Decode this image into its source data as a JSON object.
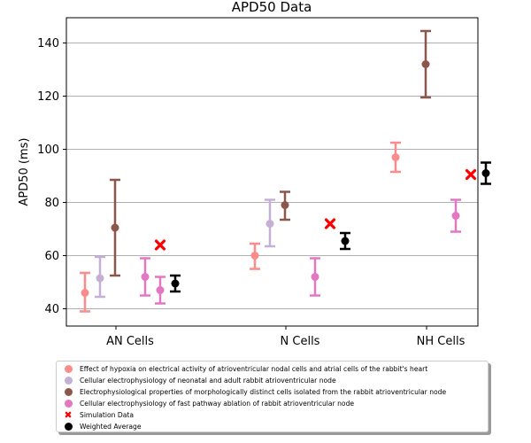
{
  "chart_data": {
    "type": "scatter",
    "title": "APD50 Data",
    "xlabel": "",
    "ylabel": "APD50 (ms)",
    "categories": [
      "AN Cells",
      "N Cells",
      "NH Cells"
    ],
    "ylim": [
      33.5,
      149.5
    ],
    "yticks": [
      40,
      60,
      80,
      100,
      120,
      140
    ],
    "grid": "horizontal",
    "legend_placement": "below",
    "series": [
      {
        "name": "Effect of hypoxia on electrical activity of atrioventricular nodal cells and atrial cells of the rabbit's heart",
        "color": "#fa8c8c",
        "marker": "circle",
        "points": [
          {
            "category": "AN Cells",
            "value": 46,
            "low": 39,
            "high": 53.5
          },
          {
            "category": "N Cells",
            "value": 60,
            "low": 55,
            "high": 64.5
          },
          {
            "category": "NH Cells",
            "value": 97,
            "low": 91.5,
            "high": 102.5
          }
        ]
      },
      {
        "name": "Cellular electrophysiology of neonatal and adult rabbit atrioventricular node",
        "color": "#c5b0d5",
        "marker": "circle",
        "points": [
          {
            "category": "AN Cells",
            "value": 51.5,
            "low": 44.5,
            "high": 59.5
          },
          {
            "category": "N Cells",
            "value": 72,
            "low": 63.5,
            "high": 81
          }
        ]
      },
      {
        "name": "Electrophysiological properties of morphologically distinct cells isolated from the rabbit atrioventricular node",
        "color": "#8c564b",
        "marker": "circle",
        "points": [
          {
            "category": "AN Cells",
            "value": 70.5,
            "low": 52.5,
            "high": 88.5
          },
          {
            "category": "N Cells",
            "value": 79,
            "low": 73.5,
            "high": 84
          },
          {
            "category": "NH Cells",
            "value": 132,
            "low": 119.5,
            "high": 144.5
          }
        ]
      },
      {
        "name": "Cellular electrophysiology of fast pathway ablation of rabbit atrioventricular node",
        "color": "#e377c2",
        "marker": "circle",
        "points": [
          {
            "category": "AN Cells",
            "value": 52,
            "low": 45,
            "high": 59,
            "slot": 4
          },
          {
            "category": "AN Cells",
            "value": 47,
            "low": 42,
            "high": 52,
            "slot": 5
          },
          {
            "category": "N Cells",
            "value": 52,
            "low": 45,
            "high": 59,
            "slot": 4
          },
          {
            "category": "NH Cells",
            "value": 75,
            "low": 69,
            "high": 81,
            "slot": 4
          }
        ]
      },
      {
        "name": "Simulation Data",
        "color": "#ff0000",
        "marker": "x",
        "points": [
          {
            "category": "AN Cells",
            "value": 64
          },
          {
            "category": "N Cells",
            "value": 72
          },
          {
            "category": "NH Cells",
            "value": 90.5
          }
        ]
      },
      {
        "name": "Weighted Average",
        "color": "#000000",
        "marker": "circle",
        "points": [
          {
            "category": "AN Cells",
            "value": 49.5,
            "low": 46.5,
            "high": 52.5
          },
          {
            "category": "N Cells",
            "value": 65.5,
            "low": 62.5,
            "high": 68.5
          },
          {
            "category": "NH Cells",
            "value": 91,
            "low": 87,
            "high": 95
          }
        ]
      }
    ]
  }
}
